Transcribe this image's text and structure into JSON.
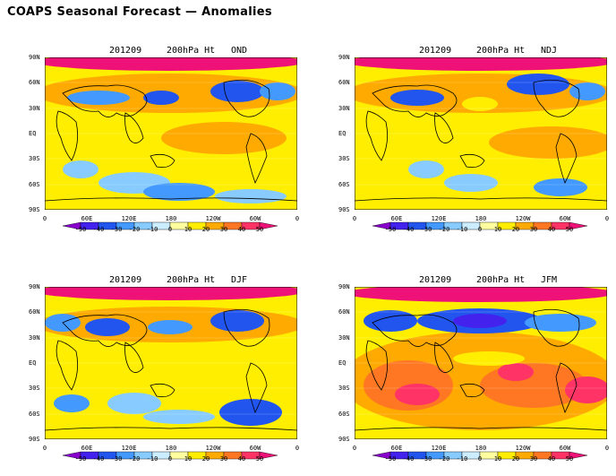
{
  "title": "COAPS Seasonal Forecast — Anomalies",
  "panels": [
    {
      "date": "201209",
      "variable": "200hPa Ht",
      "season": "OND"
    },
    {
      "date": "201209",
      "variable": "200hPa Ht",
      "season": "NDJ"
    },
    {
      "date": "201209",
      "variable": "200hPa Ht",
      "season": "DJF"
    },
    {
      "date": "201209",
      "variable": "200hPa Ht",
      "season": "JFM"
    }
  ],
  "lat_labels": [
    "90N",
    "60N",
    "30N",
    "EQ",
    "30S",
    "60S",
    "90S"
  ],
  "lon_labels": [
    "0",
    "60E",
    "120E",
    "180",
    "120W",
    "60W",
    "0"
  ],
  "colorbar": {
    "labels": [
      "-50",
      "-40",
      "-30",
      "-20",
      "-10",
      "0",
      "10",
      "20",
      "30",
      "40",
      "50"
    ],
    "colors": [
      "#8800cc",
      "#4422ee",
      "#2255ee",
      "#4499ff",
      "#88ccff",
      "#ccecff",
      "#ffffa0",
      "#ffee00",
      "#ffaa00",
      "#ff7722",
      "#ff3366",
      "#ee1177"
    ]
  }
}
